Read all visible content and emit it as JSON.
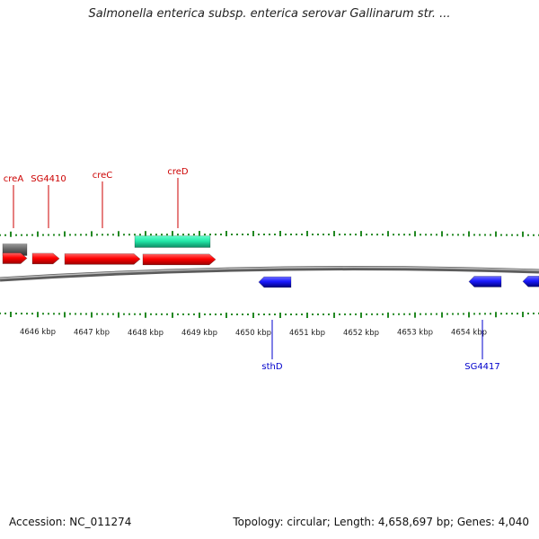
{
  "title": "Salmonella enterica subsp. enterica serovar Gallinarum str. ...",
  "colors": {
    "forward_gene": "#ff0000",
    "reverse_gene": "#1a1aff",
    "other_feature": "#666666",
    "mobile_element": "#22e8a8",
    "tick": "#228822",
    "backbone": "#888888",
    "top_label": "#cc0000",
    "bottom_label": "#0000cc"
  },
  "scale": {
    "start_kbp": 4645.3,
    "end_kbp": 4655.3,
    "unit": "kbp",
    "labels": [
      "4646 kbp",
      "4647 kbp",
      "4648 kbp",
      "4649 kbp",
      "4650 kbp",
      "4651 kbp",
      "4652 kbp",
      "4653 kbp",
      "4654 kbp"
    ],
    "label_kbp": [
      4646,
      4647,
      4648,
      4649,
      4650,
      4651,
      4652,
      4653,
      4654
    ]
  },
  "features": [
    {
      "track": "top-grey",
      "start_kbp": 4645.3,
      "end_kbp": 4645.8,
      "strand": "none",
      "color_key": "other_feature"
    },
    {
      "track": "top-mobile",
      "start_kbp": 4647.8,
      "end_kbp": 4649.2,
      "strand": "none",
      "color_key": "mobile_element"
    },
    {
      "track": "forward",
      "label": "creA",
      "start_kbp": 4645.3,
      "end_kbp": 4645.8,
      "color_key": "forward_gene"
    },
    {
      "track": "forward",
      "label": "SG4410",
      "start_kbp": 4645.9,
      "end_kbp": 4646.4,
      "color_key": "forward_gene"
    },
    {
      "track": "forward",
      "label": "creC",
      "start_kbp": 4646.5,
      "end_kbp": 4647.9,
      "color_key": "forward_gene"
    },
    {
      "track": "forward",
      "label": "creD",
      "start_kbp": 4647.95,
      "end_kbp": 4649.3,
      "color_key": "forward_gene"
    },
    {
      "track": "reverse",
      "label": "sthD",
      "start_kbp": 4650.1,
      "end_kbp": 4650.7,
      "color_key": "reverse_gene"
    },
    {
      "track": "reverse",
      "label": "SG4417",
      "start_kbp": 4654.0,
      "end_kbp": 4654.6,
      "color_key": "reverse_gene"
    },
    {
      "track": "reverse",
      "start_kbp": 4655.0,
      "end_kbp": 4655.3,
      "color_key": "reverse_gene"
    }
  ],
  "top_labels": [
    {
      "text": "creA",
      "kbp": 4645.55
    },
    {
      "text": "SG4410",
      "kbp": 4646.2
    },
    {
      "text": "creC",
      "kbp": 4647.2
    },
    {
      "text": "creD",
      "kbp": 4648.6
    }
  ],
  "bottom_labels": [
    {
      "text": "sthD",
      "kbp": 4650.35
    },
    {
      "text": "SG4417",
      "kbp": 4654.25
    }
  ],
  "footer": {
    "accession": "Accession: NC_011274",
    "summary": "Topology: circular; Length: 4,658,697 bp; Genes: 4,040"
  }
}
